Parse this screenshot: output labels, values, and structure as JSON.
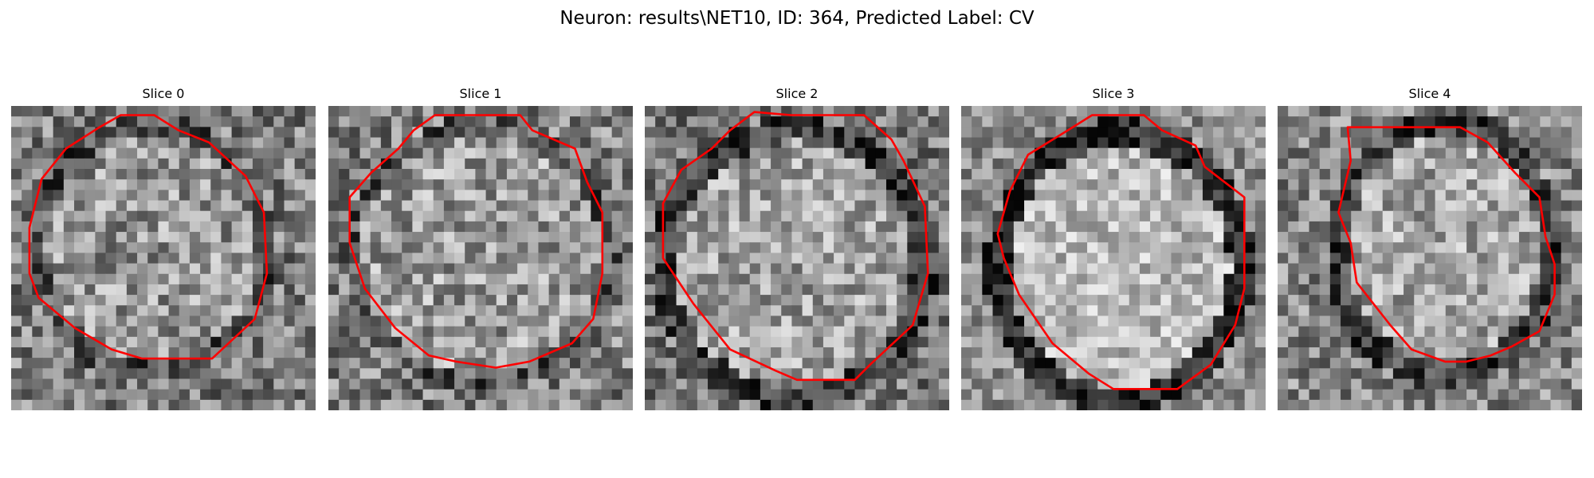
{
  "figure": {
    "title": "Neuron: results\\NET10, ID: 364, Predicted Label: CV",
    "contour_color": "#ff0000",
    "colormap": "gray"
  },
  "panels": [
    {
      "title": "Slice 0"
    },
    {
      "title": "Slice 1"
    },
    {
      "title": "Slice 2"
    },
    {
      "title": "Slice 3"
    },
    {
      "title": "Slice 4"
    }
  ]
}
